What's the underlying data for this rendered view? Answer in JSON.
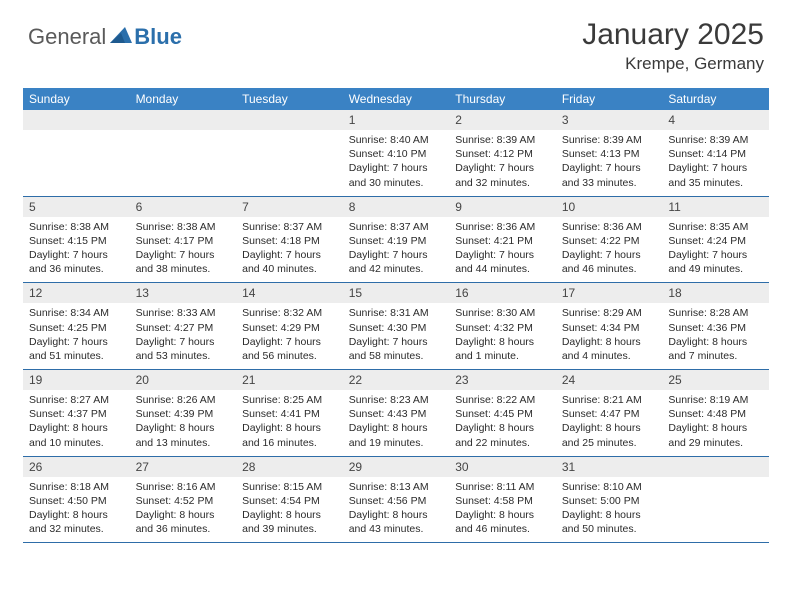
{
  "brand": {
    "general": "General",
    "blue": "Blue"
  },
  "title": "January 2025",
  "location": "Krempe, Germany",
  "colors": {
    "header_bg": "#3a82c4",
    "header_text": "#ffffff",
    "daynum_bg": "#ededed",
    "border": "#2e6da8",
    "logo_blue": "#2b6fab",
    "logo_gray": "#5a5a5a"
  },
  "fonts": {
    "title_size": 30,
    "location_size": 17,
    "header_size": 12,
    "cell_size": 10.5
  },
  "day_headers": [
    "Sunday",
    "Monday",
    "Tuesday",
    "Wednesday",
    "Thursday",
    "Friday",
    "Saturday"
  ],
  "weeks": [
    [
      {
        "num": "",
        "lines": []
      },
      {
        "num": "",
        "lines": []
      },
      {
        "num": "",
        "lines": []
      },
      {
        "num": "1",
        "lines": [
          "Sunrise: 8:40 AM",
          "Sunset: 4:10 PM",
          "Daylight: 7 hours",
          "and 30 minutes."
        ]
      },
      {
        "num": "2",
        "lines": [
          "Sunrise: 8:39 AM",
          "Sunset: 4:12 PM",
          "Daylight: 7 hours",
          "and 32 minutes."
        ]
      },
      {
        "num": "3",
        "lines": [
          "Sunrise: 8:39 AM",
          "Sunset: 4:13 PM",
          "Daylight: 7 hours",
          "and 33 minutes."
        ]
      },
      {
        "num": "4",
        "lines": [
          "Sunrise: 8:39 AM",
          "Sunset: 4:14 PM",
          "Daylight: 7 hours",
          "and 35 minutes."
        ]
      }
    ],
    [
      {
        "num": "5",
        "lines": [
          "Sunrise: 8:38 AM",
          "Sunset: 4:15 PM",
          "Daylight: 7 hours",
          "and 36 minutes."
        ]
      },
      {
        "num": "6",
        "lines": [
          "Sunrise: 8:38 AM",
          "Sunset: 4:17 PM",
          "Daylight: 7 hours",
          "and 38 minutes."
        ]
      },
      {
        "num": "7",
        "lines": [
          "Sunrise: 8:37 AM",
          "Sunset: 4:18 PM",
          "Daylight: 7 hours",
          "and 40 minutes."
        ]
      },
      {
        "num": "8",
        "lines": [
          "Sunrise: 8:37 AM",
          "Sunset: 4:19 PM",
          "Daylight: 7 hours",
          "and 42 minutes."
        ]
      },
      {
        "num": "9",
        "lines": [
          "Sunrise: 8:36 AM",
          "Sunset: 4:21 PM",
          "Daylight: 7 hours",
          "and 44 minutes."
        ]
      },
      {
        "num": "10",
        "lines": [
          "Sunrise: 8:36 AM",
          "Sunset: 4:22 PM",
          "Daylight: 7 hours",
          "and 46 minutes."
        ]
      },
      {
        "num": "11",
        "lines": [
          "Sunrise: 8:35 AM",
          "Sunset: 4:24 PM",
          "Daylight: 7 hours",
          "and 49 minutes."
        ]
      }
    ],
    [
      {
        "num": "12",
        "lines": [
          "Sunrise: 8:34 AM",
          "Sunset: 4:25 PM",
          "Daylight: 7 hours",
          "and 51 minutes."
        ]
      },
      {
        "num": "13",
        "lines": [
          "Sunrise: 8:33 AM",
          "Sunset: 4:27 PM",
          "Daylight: 7 hours",
          "and 53 minutes."
        ]
      },
      {
        "num": "14",
        "lines": [
          "Sunrise: 8:32 AM",
          "Sunset: 4:29 PM",
          "Daylight: 7 hours",
          "and 56 minutes."
        ]
      },
      {
        "num": "15",
        "lines": [
          "Sunrise: 8:31 AM",
          "Sunset: 4:30 PM",
          "Daylight: 7 hours",
          "and 58 minutes."
        ]
      },
      {
        "num": "16",
        "lines": [
          "Sunrise: 8:30 AM",
          "Sunset: 4:32 PM",
          "Daylight: 8 hours",
          "and 1 minute."
        ]
      },
      {
        "num": "17",
        "lines": [
          "Sunrise: 8:29 AM",
          "Sunset: 4:34 PM",
          "Daylight: 8 hours",
          "and 4 minutes."
        ]
      },
      {
        "num": "18",
        "lines": [
          "Sunrise: 8:28 AM",
          "Sunset: 4:36 PM",
          "Daylight: 8 hours",
          "and 7 minutes."
        ]
      }
    ],
    [
      {
        "num": "19",
        "lines": [
          "Sunrise: 8:27 AM",
          "Sunset: 4:37 PM",
          "Daylight: 8 hours",
          "and 10 minutes."
        ]
      },
      {
        "num": "20",
        "lines": [
          "Sunrise: 8:26 AM",
          "Sunset: 4:39 PM",
          "Daylight: 8 hours",
          "and 13 minutes."
        ]
      },
      {
        "num": "21",
        "lines": [
          "Sunrise: 8:25 AM",
          "Sunset: 4:41 PM",
          "Daylight: 8 hours",
          "and 16 minutes."
        ]
      },
      {
        "num": "22",
        "lines": [
          "Sunrise: 8:23 AM",
          "Sunset: 4:43 PM",
          "Daylight: 8 hours",
          "and 19 minutes."
        ]
      },
      {
        "num": "23",
        "lines": [
          "Sunrise: 8:22 AM",
          "Sunset: 4:45 PM",
          "Daylight: 8 hours",
          "and 22 minutes."
        ]
      },
      {
        "num": "24",
        "lines": [
          "Sunrise: 8:21 AM",
          "Sunset: 4:47 PM",
          "Daylight: 8 hours",
          "and 25 minutes."
        ]
      },
      {
        "num": "25",
        "lines": [
          "Sunrise: 8:19 AM",
          "Sunset: 4:48 PM",
          "Daylight: 8 hours",
          "and 29 minutes."
        ]
      }
    ],
    [
      {
        "num": "26",
        "lines": [
          "Sunrise: 8:18 AM",
          "Sunset: 4:50 PM",
          "Daylight: 8 hours",
          "and 32 minutes."
        ]
      },
      {
        "num": "27",
        "lines": [
          "Sunrise: 8:16 AM",
          "Sunset: 4:52 PM",
          "Daylight: 8 hours",
          "and 36 minutes."
        ]
      },
      {
        "num": "28",
        "lines": [
          "Sunrise: 8:15 AM",
          "Sunset: 4:54 PM",
          "Daylight: 8 hours",
          "and 39 minutes."
        ]
      },
      {
        "num": "29",
        "lines": [
          "Sunrise: 8:13 AM",
          "Sunset: 4:56 PM",
          "Daylight: 8 hours",
          "and 43 minutes."
        ]
      },
      {
        "num": "30",
        "lines": [
          "Sunrise: 8:11 AM",
          "Sunset: 4:58 PM",
          "Daylight: 8 hours",
          "and 46 minutes."
        ]
      },
      {
        "num": "31",
        "lines": [
          "Sunrise: 8:10 AM",
          "Sunset: 5:00 PM",
          "Daylight: 8 hours",
          "and 50 minutes."
        ]
      },
      {
        "num": "",
        "lines": []
      }
    ]
  ]
}
